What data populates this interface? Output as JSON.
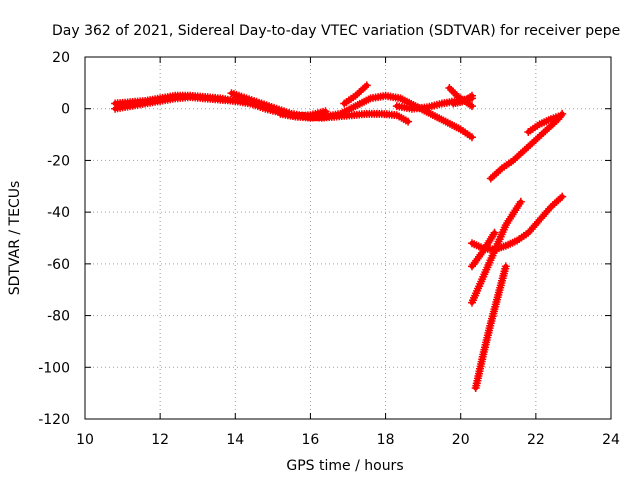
{
  "chart_data": {
    "type": "scatter",
    "title": "Day 362 of 2021, Sidereal Day-to-day VTEC variation (SDTVAR) for receiver pepe",
    "xlabel": "GPS time / hours",
    "ylabel": "SDTVAR / TECUs",
    "xlim": [
      10,
      24
    ],
    "ylim": [
      -120,
      20
    ],
    "xticks": [
      10,
      12,
      14,
      16,
      18,
      20,
      22,
      24
    ],
    "yticks": [
      20,
      0,
      -20,
      -40,
      -60,
      -80,
      -100,
      -120
    ],
    "grid": true,
    "marker": "plus",
    "color": "#ff0000",
    "series": [
      {
        "name": "t1",
        "x": [
          10.8,
          11.2,
          11.6,
          12.0,
          12.4,
          12.8,
          13.2,
          13.6,
          14.0,
          14.4,
          14.8,
          15.2,
          15.6,
          16.0,
          16.4
        ],
        "y": [
          0,
          1,
          2,
          3,
          4,
          4.5,
          4,
          3.5,
          3,
          2,
          0,
          -1.5,
          -3,
          -2.5,
          -1
        ]
      },
      {
        "name": "t2",
        "x": [
          10.8,
          11.2,
          11.6,
          12.0,
          12.4,
          12.8,
          13.2,
          13.6,
          14.0
        ],
        "y": [
          2,
          2.5,
          3,
          4,
          5,
          5,
          4.5,
          4,
          3
        ]
      },
      {
        "name": "t3",
        "x": [
          13.9,
          14.3,
          14.7,
          15.1,
          15.5,
          15.9,
          16.3,
          16.7,
          17.1,
          17.5,
          17.9,
          18.3,
          18.6
        ],
        "y": [
          6,
          4,
          2,
          0,
          -2,
          -3,
          -3.5,
          -3,
          -2.5,
          -2,
          -2,
          -2.5,
          -5
        ]
      },
      {
        "name": "t4",
        "x": [
          15.2,
          15.6,
          16.0,
          16.4,
          16.8,
          17.2,
          17.6,
          18.0,
          18.4,
          18.8,
          19.2,
          19.6,
          20.0,
          20.3
        ],
        "y": [
          -2,
          -3,
          -3.5,
          -3,
          -2,
          1,
          4,
          5,
          4,
          1,
          -2,
          -5,
          -8,
          -11
        ]
      },
      {
        "name": "t5",
        "x": [
          16.9,
          17.2,
          17.5
        ],
        "y": [
          2,
          5,
          9
        ]
      },
      {
        "name": "t6",
        "x": [
          18.3,
          18.7,
          19.1,
          19.5,
          19.9,
          20.3
        ],
        "y": [
          1,
          0,
          0.5,
          2,
          3,
          4
        ]
      },
      {
        "name": "t7",
        "x": [
          19.7,
          19.9,
          20.1,
          20.3
        ],
        "y": [
          8,
          5,
          3,
          1
        ]
      },
      {
        "name": "t8",
        "x": [
          19.8,
          20.1,
          20.3
        ],
        "y": [
          2,
          3,
          5
        ]
      },
      {
        "name": "t9",
        "x": [
          20.3,
          20.6,
          20.9,
          21.2,
          21.5,
          21.8,
          22.1,
          22.4,
          22.7
        ],
        "y": [
          -52,
          -54,
          -54.5,
          -53,
          -51,
          -48,
          -43,
          -38,
          -34
        ]
      },
      {
        "name": "t10",
        "x": [
          20.8,
          21.1,
          21.4,
          21.7,
          22.0,
          22.3,
          22.6,
          22.7
        ],
        "y": [
          -27,
          -23,
          -20,
          -16,
          -12,
          -8,
          -4,
          -2
        ]
      },
      {
        "name": "t11",
        "x": [
          21.8,
          22.1,
          22.4,
          22.6
        ],
        "y": [
          -9,
          -6,
          -4,
          -3
        ]
      },
      {
        "name": "t12",
        "x": [
          20.3,
          20.6,
          20.9,
          21.2,
          21.6
        ],
        "y": [
          -75,
          -65,
          -55,
          -45,
          -36
        ]
      },
      {
        "name": "t13",
        "x": [
          20.4,
          20.6,
          20.8,
          21.0,
          21.2
        ],
        "y": [
          -108,
          -95,
          -83,
          -72,
          -61
        ]
      },
      {
        "name": "t14",
        "x": [
          20.3,
          20.6,
          20.9
        ],
        "y": [
          -61,
          -55,
          -48
        ]
      }
    ]
  }
}
